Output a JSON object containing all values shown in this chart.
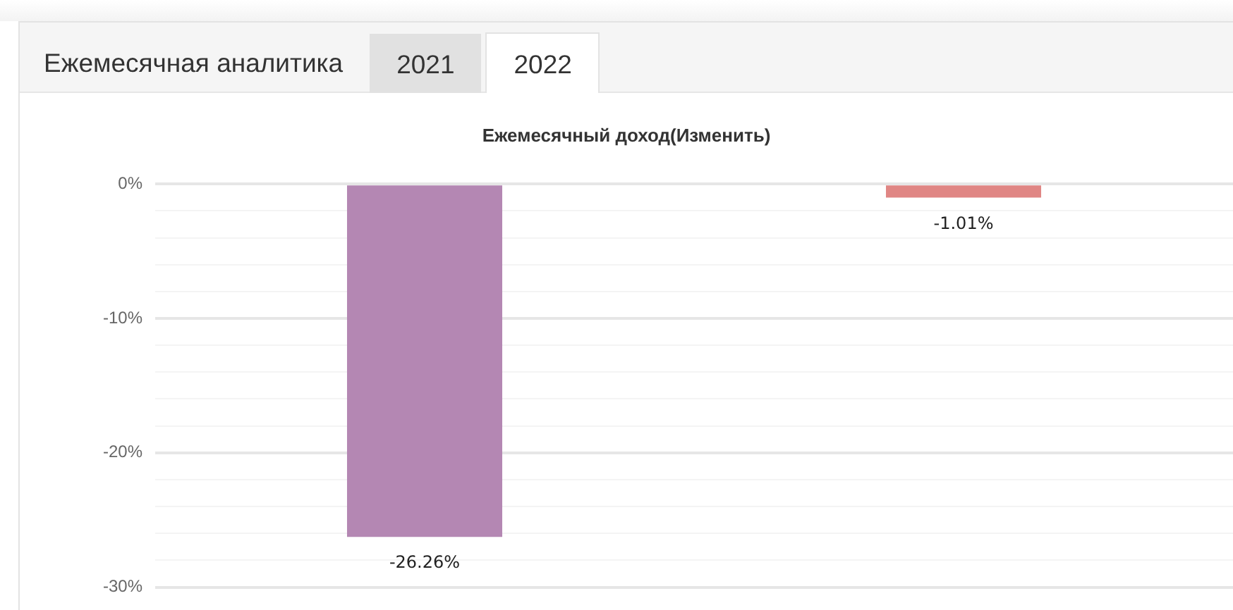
{
  "chart_data": {
    "type": "bar",
    "title": "Ежемесячный доход(Изменить)",
    "annotations": [
      "Ежемесячная аналитика",
      "2021",
      "2022"
    ],
    "categories": [
      null,
      null
    ],
    "values": [
      -26.26,
      -1.01
    ],
    "colors": [
      "#b487b3",
      "#e08684"
    ],
    "value_labels": [
      "-26.26%",
      "-1.01%"
    ],
    "ylim": [
      -30,
      0
    ],
    "yticks": [
      {
        "value": 0,
        "label": "0%"
      },
      {
        "value": -2,
        "label": null
      },
      {
        "value": -4,
        "label": null
      },
      {
        "value": -6,
        "label": null
      },
      {
        "value": -8,
        "label": null
      },
      {
        "value": -10,
        "label": "-10%"
      },
      {
        "value": -12,
        "label": null
      },
      {
        "value": -14,
        "label": null
      },
      {
        "value": -16,
        "label": null
      },
      {
        "value": -18,
        "label": null
      },
      {
        "value": -20,
        "label": "-20%"
      },
      {
        "value": -22,
        "label": null
      },
      {
        "value": -24,
        "label": null
      },
      {
        "value": -26,
        "label": null
      },
      {
        "value": -28,
        "label": null
      },
      {
        "value": -30,
        "label": "-30%"
      }
    ],
    "grid": "y"
  }
}
